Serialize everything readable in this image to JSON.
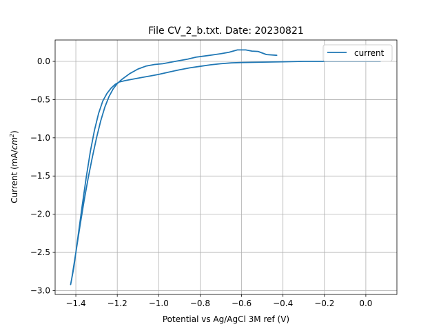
{
  "chart_data": {
    "type": "line",
    "title": "File CV_2_b.txt. Date: 20230821",
    "xlabel": "Potential vs Ag/AgCl 3M ref (V)",
    "ylabel_prefix": "Current (mA/",
    "ylabel_unit": "cm",
    "ylabel_exp": "2",
    "ylabel_suffix": ")",
    "xlim": [
      -1.5,
      0.15
    ],
    "ylim": [
      -3.05,
      0.28
    ],
    "xticks": [
      {
        "value": -1.4,
        "label": "−1.4"
      },
      {
        "value": -1.2,
        "label": "−1.2"
      },
      {
        "value": -1.0,
        "label": "−1.0"
      },
      {
        "value": -0.8,
        "label": "−0.8"
      },
      {
        "value": -0.6,
        "label": "−0.6"
      },
      {
        "value": -0.4,
        "label": "−0.4"
      },
      {
        "value": -0.2,
        "label": "−0.2"
      },
      {
        "value": 0.0,
        "label": "0.0"
      }
    ],
    "yticks": [
      {
        "value": 0.0,
        "label": "0.0"
      },
      {
        "value": -0.5,
        "label": "−0.5"
      },
      {
        "value": -1.0,
        "label": "−1.0"
      },
      {
        "value": -1.5,
        "label": "−1.5"
      },
      {
        "value": -2.0,
        "label": "−2.0"
      },
      {
        "value": -2.5,
        "label": "−2.5"
      },
      {
        "value": -3.0,
        "label": "−3.0"
      }
    ],
    "grid": true,
    "legend_position": "top-right",
    "series": [
      {
        "name": "current",
        "color": "#1f77b4",
        "x": [
          -0.43,
          -0.48,
          -0.52,
          -0.55,
          -0.58,
          -0.62,
          -0.66,
          -0.7,
          -0.74,
          -0.78,
          -0.82,
          -0.86,
          -0.9,
          -0.94,
          -0.98,
          -1.02,
          -1.06,
          -1.1,
          -1.14,
          -1.18,
          -1.2,
          -1.22,
          -1.24,
          -1.26,
          -1.28,
          -1.3,
          -1.32,
          -1.34,
          -1.36,
          -1.38,
          -1.4,
          -1.42,
          -1.425,
          -1.41,
          -1.39,
          -1.37,
          -1.35,
          -1.33,
          -1.31,
          -1.29,
          -1.27,
          -1.25,
          -1.23,
          -1.21,
          -1.19,
          -1.16,
          -1.12,
          -1.08,
          -1.04,
          -1.0,
          -0.95,
          -0.9,
          -0.85,
          -0.8,
          -0.75,
          -0.7,
          -0.65,
          -0.6,
          -0.5,
          -0.4,
          -0.3,
          -0.2,
          -0.1,
          0.0,
          0.07
        ],
        "y": [
          0.08,
          0.09,
          0.13,
          0.135,
          0.15,
          0.15,
          0.12,
          0.1,
          0.085,
          0.07,
          0.055,
          0.03,
          0.01,
          -0.01,
          -0.03,
          -0.04,
          -0.06,
          -0.1,
          -0.16,
          -0.24,
          -0.29,
          -0.36,
          -0.46,
          -0.6,
          -0.78,
          -1.0,
          -1.25,
          -1.52,
          -1.82,
          -2.15,
          -2.5,
          -2.85,
          -2.92,
          -2.7,
          -2.3,
          -1.9,
          -1.52,
          -1.18,
          -0.9,
          -0.68,
          -0.52,
          -0.42,
          -0.35,
          -0.3,
          -0.27,
          -0.25,
          -0.23,
          -0.21,
          -0.19,
          -0.17,
          -0.14,
          -0.11,
          -0.085,
          -0.065,
          -0.045,
          -0.03,
          -0.02,
          -0.015,
          -0.01,
          -0.005,
          0.0,
          0.0,
          0.0,
          0.0,
          0.0
        ]
      }
    ]
  }
}
